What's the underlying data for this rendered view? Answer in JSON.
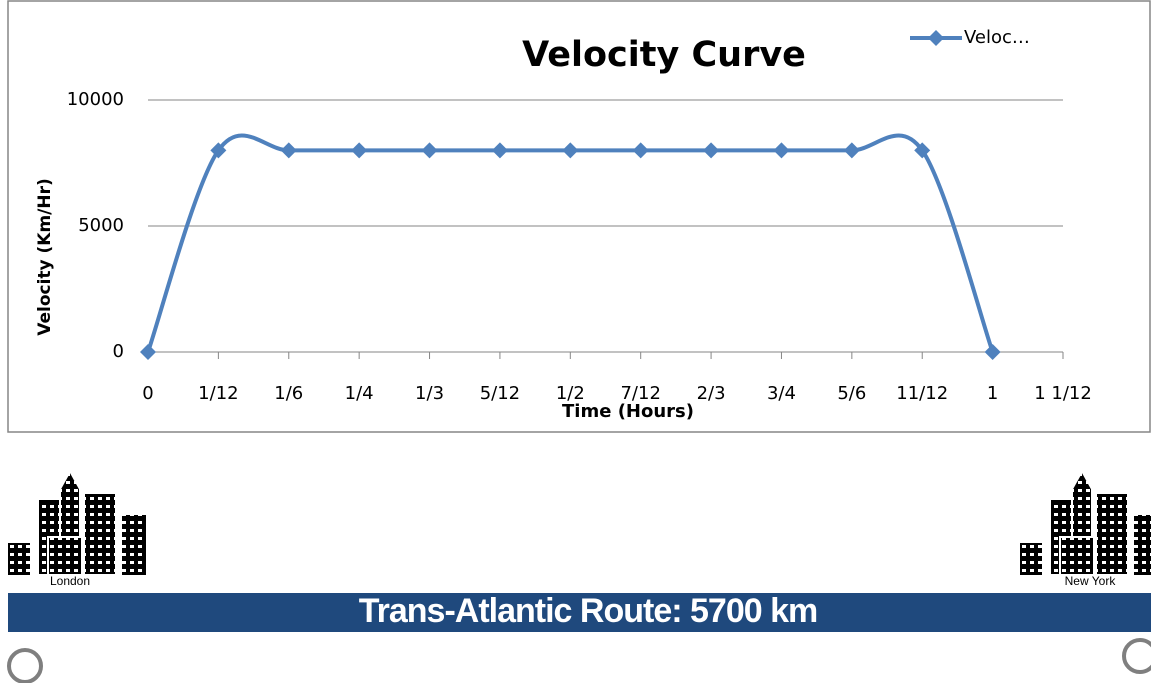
{
  "chart_data": {
    "type": "line",
    "title": "Velocity Curve",
    "x_label": "Time (Hours)",
    "y_label": "Velocity (Km/Hr)",
    "x": [
      0,
      0.0833333,
      0.1666667,
      0.25,
      0.3333333,
      0.4166667,
      0.5,
      0.5833333,
      0.6666667,
      0.75,
      0.8333333,
      0.9166667,
      1
    ],
    "series": [
      {
        "name": "Veloc…",
        "color": "#4f81bd",
        "values": [
          0,
          8000,
          8000,
          8000,
          8000,
          8000,
          8000,
          8000,
          8000,
          8000,
          8000,
          8000,
          0
        ]
      }
    ],
    "xlim": [
      0,
      1.0833333
    ],
    "xticks": [
      0,
      {
        "value": 0.0833333,
        "label": "1/12"
      },
      {
        "value": 0.1666667,
        "label": "1/6"
      },
      {
        "value": 0.25,
        "label": "1/4"
      },
      {
        "value": 0.3333333,
        "label": "1/3"
      },
      {
        "value": 0.4166667,
        "label": "5/12"
      },
      {
        "value": 0.5,
        "label": "1/2"
      },
      {
        "value": 0.5833333,
        "label": "7/12"
      },
      {
        "value": 0.6666667,
        "label": "2/3"
      },
      {
        "value": 0.75,
        "label": "3/4"
      },
      {
        "value": 0.8333333,
        "label": "5/6"
      },
      {
        "value": 0.9166667,
        "label": "11/12"
      },
      1,
      {
        "value": 1.0833333,
        "label": "1 1/12"
      }
    ],
    "ylim": [
      0,
      10000
    ],
    "yticks": [
      0,
      5000,
      10000
    ],
    "grid": true,
    "legend": "top-right"
  },
  "route": {
    "title": "Trans-Atlantic Route: 5700 km",
    "start": "London",
    "end": "New York"
  }
}
